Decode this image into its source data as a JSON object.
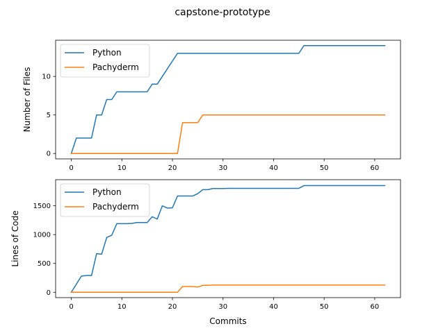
{
  "figure": {
    "title": "capstone-prototype"
  },
  "chart_data": [
    {
      "type": "line",
      "title": "",
      "xlabel": "",
      "ylabel": "Number of Files",
      "xlim": [
        -3.1,
        65.1
      ],
      "ylim": [
        -0.7,
        14.7
      ],
      "xticks": [
        0,
        10,
        20,
        30,
        40,
        50,
        60
      ],
      "yticks": [
        0,
        5,
        10
      ],
      "legend": "top-left",
      "grid": false,
      "series": [
        {
          "name": "Python",
          "color": "#1f77b4",
          "x": [
            0,
            1,
            2,
            3,
            4,
            5,
            6,
            7,
            8,
            9,
            10,
            11,
            12,
            13,
            14,
            15,
            16,
            17,
            18,
            19,
            20,
            21,
            22,
            23,
            24,
            25,
            26,
            27,
            28,
            29,
            30,
            31,
            32,
            33,
            34,
            35,
            36,
            37,
            38,
            39,
            40,
            41,
            42,
            43,
            44,
            45,
            46,
            47,
            48,
            49,
            50,
            51,
            52,
            53,
            54,
            55,
            56,
            57,
            58,
            59,
            60,
            61,
            62
          ],
          "values": [
            0,
            2,
            2,
            2,
            2,
            5,
            5,
            7,
            7,
            8,
            8,
            8,
            8,
            8,
            8,
            8,
            9,
            9,
            10,
            11,
            12,
            13,
            13,
            13,
            13,
            13,
            13,
            13,
            13,
            13,
            13,
            13,
            13,
            13,
            13,
            13,
            13,
            13,
            13,
            13,
            13,
            13,
            13,
            13,
            13,
            13,
            14,
            14,
            14,
            14,
            14,
            14,
            14,
            14,
            14,
            14,
            14,
            14,
            14,
            14,
            14,
            14,
            14
          ]
        },
        {
          "name": "Pachyderm",
          "color": "#ff7f0e",
          "x": [
            0,
            1,
            2,
            3,
            4,
            5,
            6,
            7,
            8,
            9,
            10,
            11,
            12,
            13,
            14,
            15,
            16,
            17,
            18,
            19,
            20,
            21,
            22,
            23,
            24,
            25,
            26,
            27,
            28,
            29,
            30,
            31,
            32,
            33,
            34,
            35,
            36,
            37,
            38,
            39,
            40,
            41,
            42,
            43,
            44,
            45,
            46,
            47,
            48,
            49,
            50,
            51,
            52,
            53,
            54,
            55,
            56,
            57,
            58,
            59,
            60,
            61,
            62
          ],
          "values": [
            0,
            0,
            0,
            0,
            0,
            0,
            0,
            0,
            0,
            0,
            0,
            0,
            0,
            0,
            0,
            0,
            0,
            0,
            0,
            0,
            0,
            0,
            4,
            4,
            4,
            4,
            5,
            5,
            5,
            5,
            5,
            5,
            5,
            5,
            5,
            5,
            5,
            5,
            5,
            5,
            5,
            5,
            5,
            5,
            5,
            5,
            5,
            5,
            5,
            5,
            5,
            5,
            5,
            5,
            5,
            5,
            5,
            5,
            5,
            5,
            5,
            5,
            5
          ]
        }
      ]
    },
    {
      "type": "line",
      "title": "",
      "xlabel": "Commits",
      "ylabel": "Lines of Code",
      "xlim": [
        -3.1,
        65.1
      ],
      "ylim": [
        -93,
        1953
      ],
      "xticks": [
        0,
        10,
        20,
        30,
        40,
        50,
        60
      ],
      "yticks": [
        0,
        500,
        1000,
        1500
      ],
      "legend": "top-left",
      "grid": false,
      "series": [
        {
          "name": "Python",
          "color": "#1f77b4",
          "x": [
            0,
            1,
            2,
            3,
            4,
            5,
            6,
            7,
            8,
            9,
            10,
            11,
            12,
            13,
            14,
            15,
            16,
            17,
            18,
            19,
            20,
            21,
            22,
            23,
            24,
            25,
            26,
            27,
            28,
            29,
            30,
            31,
            32,
            33,
            34,
            35,
            36,
            37,
            38,
            39,
            40,
            41,
            42,
            43,
            44,
            45,
            46,
            47,
            48,
            49,
            50,
            51,
            52,
            53,
            54,
            55,
            56,
            57,
            58,
            59,
            60,
            61,
            62
          ],
          "values": [
            0,
            140,
            280,
            290,
            290,
            670,
            660,
            950,
            990,
            1190,
            1190,
            1190,
            1195,
            1210,
            1210,
            1210,
            1310,
            1270,
            1500,
            1460,
            1465,
            1670,
            1670,
            1670,
            1670,
            1710,
            1780,
            1780,
            1800,
            1800,
            1800,
            1803,
            1803,
            1803,
            1803,
            1803,
            1803,
            1803,
            1803,
            1803,
            1803,
            1803,
            1803,
            1803,
            1803,
            1803,
            1850,
            1850,
            1850,
            1850,
            1850,
            1850,
            1850,
            1850,
            1850,
            1850,
            1850,
            1850,
            1850,
            1850,
            1850,
            1850,
            1850
          ]
        },
        {
          "name": "Pachyderm",
          "color": "#ff7f0e",
          "x": [
            0,
            1,
            2,
            3,
            4,
            5,
            6,
            7,
            8,
            9,
            10,
            11,
            12,
            13,
            14,
            15,
            16,
            17,
            18,
            19,
            20,
            21,
            22,
            23,
            24,
            25,
            26,
            27,
            28,
            29,
            30,
            31,
            32,
            33,
            34,
            35,
            36,
            37,
            38,
            39,
            40,
            41,
            42,
            43,
            44,
            45,
            46,
            47,
            48,
            49,
            50,
            51,
            52,
            53,
            54,
            55,
            56,
            57,
            58,
            59,
            60,
            61,
            62
          ],
          "values": [
            0,
            0,
            0,
            0,
            0,
            0,
            0,
            0,
            0,
            0,
            0,
            0,
            0,
            0,
            0,
            0,
            0,
            0,
            0,
            0,
            0,
            0,
            100,
            100,
            100,
            90,
            120,
            120,
            125,
            125,
            125,
            125,
            125,
            125,
            125,
            125,
            125,
            125,
            125,
            125,
            125,
            125,
            125,
            125,
            125,
            125,
            125,
            125,
            125,
            125,
            125,
            125,
            125,
            125,
            125,
            125,
            125,
            125,
            125,
            125,
            125,
            125,
            125
          ]
        }
      ]
    }
  ]
}
